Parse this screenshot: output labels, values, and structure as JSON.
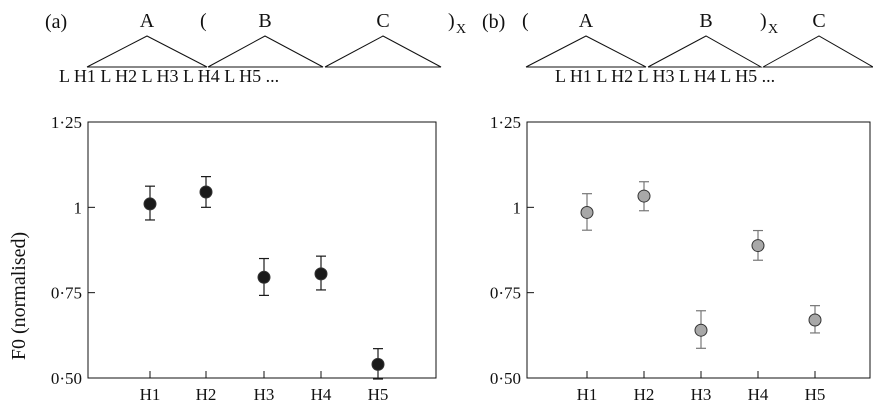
{
  "ylabel": "F0 (normalised)",
  "chart_data": [
    {
      "type": "scatter",
      "panel_label": "(a)",
      "groups": [
        {
          "name": "A",
          "open": "",
          "close": "",
          "subscript": ""
        },
        {
          "name": "B",
          "open": "(",
          "close": "",
          "subscript": ""
        },
        {
          "name": "C",
          "open": "",
          "close": ")",
          "subscript": "X"
        }
      ],
      "tone_string": "L  H1  L  H2  L  H3  L  H4  L  H5 ...",
      "categories": [
        "H1",
        "H2",
        "H3",
        "H4",
        "H5"
      ],
      "values": [
        1.01,
        1.045,
        0.795,
        0.805,
        0.54
      ],
      "error_low": [
        0.963,
        1.0,
        0.742,
        0.758,
        0.497
      ],
      "error_high": [
        1.062,
        1.09,
        0.85,
        0.857,
        0.586
      ],
      "ylim": [
        0.5,
        1.25
      ],
      "yticks": [
        "0·50",
        "0·75",
        "1",
        "1·25"
      ],
      "ytick_values": [
        0.5,
        0.75,
        1.0,
        1.25
      ],
      "marker_color": "#1a1a1a",
      "errorbar_color": "#1a1a1a",
      "grid": false
    },
    {
      "type": "scatter",
      "panel_label": "(b)",
      "groups": [
        {
          "name": "A",
          "open": "(",
          "close": "",
          "subscript": ""
        },
        {
          "name": "B",
          "open": "",
          "close": ")",
          "subscript": "X"
        },
        {
          "name": "C",
          "open": "",
          "close": "",
          "subscript": ""
        }
      ],
      "tone_string": "L  H1  L  H2  L  H3  L  H4  L  H5 ...",
      "categories": [
        "H1",
        "H2",
        "H3",
        "H4",
        "H5"
      ],
      "values": [
        0.985,
        1.033,
        0.64,
        0.888,
        0.67
      ],
      "error_low": [
        0.933,
        0.99,
        0.587,
        0.845,
        0.632
      ],
      "error_high": [
        1.04,
        1.075,
        0.697,
        0.932,
        0.712
      ],
      "ylim": [
        0.5,
        1.25
      ],
      "yticks": [
        "0·50",
        "0·75",
        "1",
        "1·25"
      ],
      "ytick_values": [
        0.5,
        0.75,
        1.0,
        1.25
      ],
      "marker_color": "#a8a8a8",
      "errorbar_color": "#777777",
      "grid": false
    }
  ]
}
